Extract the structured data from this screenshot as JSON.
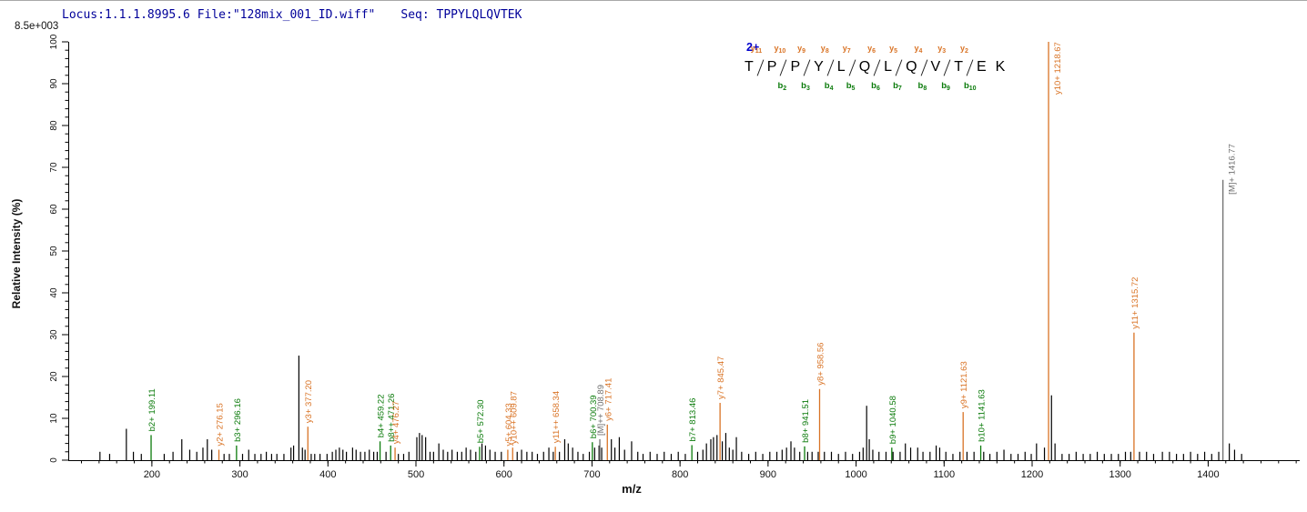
{
  "header": {
    "locus_file": "Locus:1.1.1.8995.6 File:\"128mix_001_ID.wiff\"",
    "seq_label": "Seq: TPPYLQLQVTEK",
    "scale_label": "8.5e+003"
  },
  "peptide_panel": {
    "charge_label": "2+",
    "residues": [
      "T",
      "P",
      "P",
      "Y",
      "L",
      "Q",
      "L",
      "Q",
      "V",
      "T",
      "E",
      "K"
    ],
    "sites": [
      {
        "y": "y11",
        "b": ""
      },
      {
        "y": "y10",
        "b": "b2"
      },
      {
        "y": "y9",
        "b": "b3"
      },
      {
        "y": "y8",
        "b": "b4"
      },
      {
        "y": "y7",
        "b": "b5"
      },
      {
        "y": "y6",
        "b": "b6"
      },
      {
        "y": "y5",
        "b": "b7"
      },
      {
        "y": "y4",
        "b": "b8"
      },
      {
        "y": "y3",
        "b": "b9"
      },
      {
        "y": "y2",
        "b": "b10"
      }
    ]
  },
  "colors": {
    "b_series": "#0b7b0b",
    "y_series": "#d97325",
    "precursor_series": "#6f6f6f",
    "peak": "#000000",
    "header_text": "#00009a",
    "charge_label": "#0000cc",
    "axis": "#000000"
  },
  "chart_data": {
    "type": "bar",
    "subtype": "ms2-stick-spectrum",
    "xlabel": "m/z",
    "ylabel": "Relative  Intensity (%)",
    "intensity_scale_label": "8.5e+003",
    "x_range": [
      105,
      1504
    ],
    "y_range": [
      0,
      100
    ],
    "x_major_ticks": [
      200,
      300,
      400,
      500,
      600,
      700,
      800,
      900,
      1000,
      1100,
      1200,
      1300,
      1400
    ],
    "x_minor_step": 20,
    "y_major_ticks": [
      0,
      10,
      20,
      30,
      40,
      50,
      60,
      70,
      80,
      90,
      100
    ],
    "y_minor_step": 2,
    "grid": false,
    "legend": false,
    "annotated_peaks": [
      {
        "label": "b2+ 199.11",
        "mz": 199.11,
        "intensity": 6,
        "series": "b"
      },
      {
        "label": "y2+ 276.15",
        "mz": 276.15,
        "intensity": 2.5,
        "series": "y"
      },
      {
        "label": "b3+ 296.16",
        "mz": 296.16,
        "intensity": 3.5,
        "series": "b"
      },
      {
        "label": "y3+ 377.20",
        "mz": 377.2,
        "intensity": 8,
        "series": "y"
      },
      {
        "label": "b4+ 459.22",
        "mz": 459.22,
        "intensity": 4.5,
        "series": "b"
      },
      {
        "label": "b8++ 471.26",
        "mz": 471.26,
        "intensity": 3.5,
        "series": "b"
      },
      {
        "label": "y4+ 476.27",
        "mz": 476.27,
        "intensity": 3,
        "series": "y"
      },
      {
        "label": "b5+ 572.30",
        "mz": 572.3,
        "intensity": 3.2,
        "series": "b"
      },
      {
        "label": "y5+ 604.33",
        "mz": 604.33,
        "intensity": 2.5,
        "series": "y"
      },
      {
        "label": "y10++ 609.87",
        "mz": 609.87,
        "intensity": 3,
        "series": "y"
      },
      {
        "label": "y11++ 658.34",
        "mz": 658.34,
        "intensity": 3.2,
        "series": "y"
      },
      {
        "label": "b6+ 700.39",
        "mz": 700.39,
        "intensity": 4.3,
        "series": "b"
      },
      {
        "label": "[M]++ 708.89",
        "mz": 708.89,
        "intensity": 5,
        "series": "M"
      },
      {
        "label": "y6+ 717.41",
        "mz": 717.41,
        "intensity": 8.5,
        "series": "y"
      },
      {
        "label": "b7+ 813.46",
        "mz": 813.46,
        "intensity": 3.6,
        "series": "b"
      },
      {
        "label": "y7+ 845.47",
        "mz": 845.47,
        "intensity": 13.7,
        "series": "y"
      },
      {
        "label": "b8+ 941.51",
        "mz": 941.51,
        "intensity": 3.3,
        "series": "b"
      },
      {
        "label": "y8+ 958.56",
        "mz": 958.56,
        "intensity": 17,
        "series": "y"
      },
      {
        "label": "b9+ 1040.58",
        "mz": 1040.58,
        "intensity": 3,
        "series": "b"
      },
      {
        "label": "y9+ 1121.63",
        "mz": 1121.63,
        "intensity": 11.5,
        "series": "y"
      },
      {
        "label": "b10+ 1141.63",
        "mz": 1141.63,
        "intensity": 3.5,
        "series": "b"
      },
      {
        "label": "y10+ 1218.67",
        "mz": 1218.67,
        "intensity": 100,
        "series": "y"
      },
      {
        "label": "y11+ 1315.72",
        "mz": 1315.72,
        "intensity": 30.5,
        "series": "y"
      },
      {
        "label": "[M]+ 1416.77",
        "mz": 1416.77,
        "intensity": 67,
        "series": "M"
      }
    ],
    "noise_peaks": [
      [
        141,
        2
      ],
      [
        152,
        1.5
      ],
      [
        171,
        7.5
      ],
      [
        179,
        2
      ],
      [
        188,
        1.5
      ],
      [
        214,
        1.5
      ],
      [
        224,
        2
      ],
      [
        234,
        5
      ],
      [
        243,
        2.5
      ],
      [
        251,
        2
      ],
      [
        258,
        3
      ],
      [
        263,
        5
      ],
      [
        268,
        2.5
      ],
      [
        282,
        1.5
      ],
      [
        288,
        1.5
      ],
      [
        303,
        1.5
      ],
      [
        310,
        2.5
      ],
      [
        317,
        1.5
      ],
      [
        324,
        1.5
      ],
      [
        330,
        2
      ],
      [
        336,
        1.5
      ],
      [
        342,
        1.5
      ],
      [
        350,
        1.5
      ],
      [
        358,
        3
      ],
      [
        361,
        3.5
      ],
      [
        367,
        25
      ],
      [
        371,
        3
      ],
      [
        374,
        2.5
      ],
      [
        381,
        1.5
      ],
      [
        385,
        1.5
      ],
      [
        391,
        1.5
      ],
      [
        399,
        1.5
      ],
      [
        405,
        2
      ],
      [
        409,
        2.5
      ],
      [
        413,
        3
      ],
      [
        417,
        2.5
      ],
      [
        421,
        2
      ],
      [
        428,
        3
      ],
      [
        432,
        2.5
      ],
      [
        437,
        2
      ],
      [
        442,
        2
      ],
      [
        447,
        2.5
      ],
      [
        452,
        2
      ],
      [
        456,
        2
      ],
      [
        466,
        2
      ],
      [
        480,
        1.5
      ],
      [
        486,
        1.5
      ],
      [
        492,
        2
      ],
      [
        501,
        5.5
      ],
      [
        504,
        6.5
      ],
      [
        507,
        6
      ],
      [
        511,
        5.5
      ],
      [
        516,
        2
      ],
      [
        520,
        2
      ],
      [
        526,
        4
      ],
      [
        531,
        2.5
      ],
      [
        536,
        2
      ],
      [
        541,
        2.5
      ],
      [
        547,
        2
      ],
      [
        552,
        2
      ],
      [
        557,
        3
      ],
      [
        562,
        2.5
      ],
      [
        568,
        2
      ],
      [
        575,
        4
      ],
      [
        579,
        3.5
      ],
      [
        584,
        2.5
      ],
      [
        590,
        2
      ],
      [
        597,
        2
      ],
      [
        615,
        2
      ],
      [
        620,
        2.5
      ],
      [
        626,
        2
      ],
      [
        632,
        2
      ],
      [
        638,
        1.5
      ],
      [
        645,
        2
      ],
      [
        651,
        3
      ],
      [
        656,
        2
      ],
      [
        663,
        2
      ],
      [
        669,
        5
      ],
      [
        673,
        4
      ],
      [
        678,
        3
      ],
      [
        684,
        2
      ],
      [
        690,
        1.5
      ],
      [
        697,
        2
      ],
      [
        703,
        3
      ],
      [
        708,
        3.5
      ],
      [
        711,
        3
      ],
      [
        722,
        5
      ],
      [
        726,
        3
      ],
      [
        731,
        5.5
      ],
      [
        737,
        2.5
      ],
      [
        745,
        4.5
      ],
      [
        752,
        2
      ],
      [
        758,
        1.5
      ],
      [
        766,
        2
      ],
      [
        774,
        1.5
      ],
      [
        782,
        2
      ],
      [
        790,
        1.5
      ],
      [
        798,
        2
      ],
      [
        806,
        1.5
      ],
      [
        820,
        2
      ],
      [
        826,
        2.5
      ],
      [
        830,
        4
      ],
      [
        835,
        5
      ],
      [
        838,
        5.5
      ],
      [
        842,
        6
      ],
      [
        848,
        4.5
      ],
      [
        852,
        6.5
      ],
      [
        856,
        3
      ],
      [
        860,
        2.5
      ],
      [
        864,
        5.5
      ],
      [
        870,
        2
      ],
      [
        878,
        1.5
      ],
      [
        886,
        2
      ],
      [
        894,
        1.5
      ],
      [
        902,
        2
      ],
      [
        910,
        2
      ],
      [
        916,
        2.5
      ],
      [
        921,
        3
      ],
      [
        926,
        4.5
      ],
      [
        930,
        3
      ],
      [
        936,
        2
      ],
      [
        945,
        2
      ],
      [
        950,
        2
      ],
      [
        957,
        2
      ],
      [
        964,
        2
      ],
      [
        972,
        2
      ],
      [
        980,
        1.5
      ],
      [
        988,
        2
      ],
      [
        996,
        1.5
      ],
      [
        1004,
        2
      ],
      [
        1008,
        3
      ],
      [
        1012,
        13
      ],
      [
        1015,
        5
      ],
      [
        1019,
        2.5
      ],
      [
        1026,
        2
      ],
      [
        1034,
        2
      ],
      [
        1042,
        2
      ],
      [
        1050,
        2
      ],
      [
        1056,
        4
      ],
      [
        1062,
        3
      ],
      [
        1070,
        3
      ],
      [
        1076,
        2
      ],
      [
        1084,
        2
      ],
      [
        1091,
        3.5
      ],
      [
        1095,
        3
      ],
      [
        1102,
        2
      ],
      [
        1110,
        1.5
      ],
      [
        1118,
        2
      ],
      [
        1126,
        2
      ],
      [
        1134,
        2
      ],
      [
        1145,
        2
      ],
      [
        1152,
        1.5
      ],
      [
        1160,
        2
      ],
      [
        1168,
        2.5
      ],
      [
        1176,
        1.5
      ],
      [
        1184,
        1.5
      ],
      [
        1192,
        2
      ],
      [
        1199,
        1.5
      ],
      [
        1205,
        4
      ],
      [
        1214,
        3
      ],
      [
        1222,
        15.5
      ],
      [
        1226,
        4
      ],
      [
        1234,
        1.5
      ],
      [
        1242,
        1.5
      ],
      [
        1250,
        2
      ],
      [
        1258,
        1.5
      ],
      [
        1266,
        1.5
      ],
      [
        1274,
        2
      ],
      [
        1282,
        1.5
      ],
      [
        1290,
        1.5
      ],
      [
        1298,
        1.5
      ],
      [
        1306,
        2
      ],
      [
        1312,
        2
      ],
      [
        1322,
        2
      ],
      [
        1330,
        2
      ],
      [
        1338,
        1.5
      ],
      [
        1348,
        2
      ],
      [
        1356,
        2
      ],
      [
        1364,
        1.5
      ],
      [
        1372,
        1.5
      ],
      [
        1380,
        2
      ],
      [
        1388,
        1.5
      ],
      [
        1396,
        2
      ],
      [
        1404,
        1.5
      ],
      [
        1412,
        2
      ],
      [
        1424,
        4
      ],
      [
        1430,
        2.5
      ],
      [
        1438,
        1.5
      ]
    ]
  }
}
